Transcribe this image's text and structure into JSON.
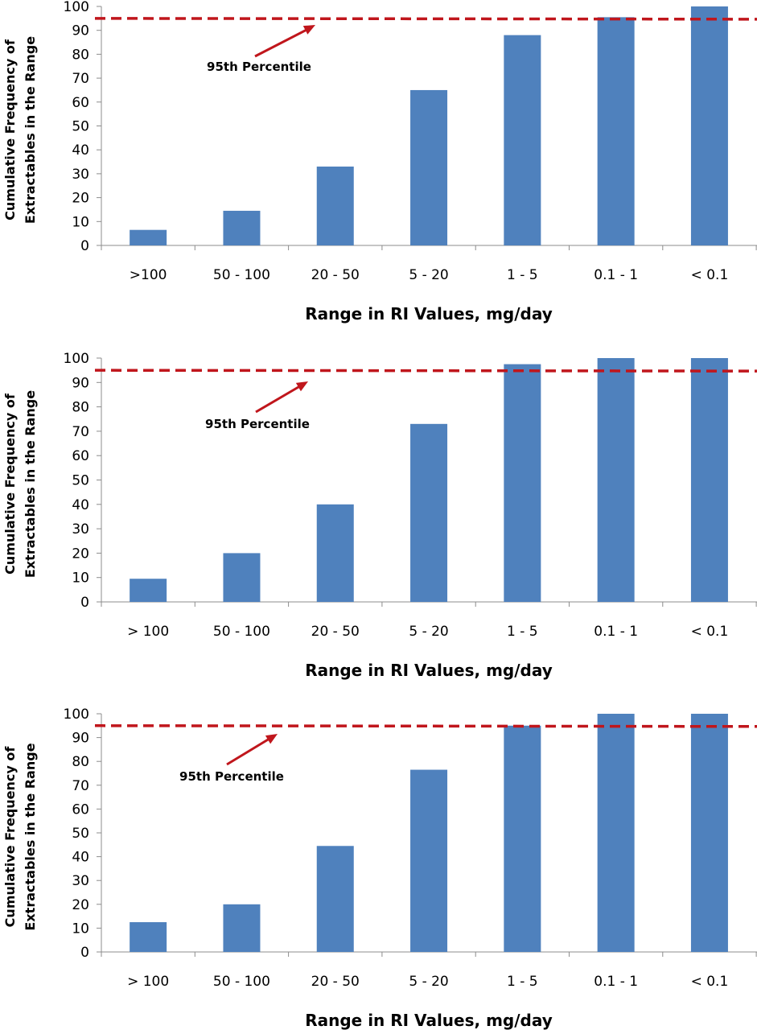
{
  "colors": {
    "bar": "#4f81bd",
    "reference_line": "#c0161c",
    "axis": "#8c8c8c"
  },
  "chart_data": [
    {
      "type": "bar",
      "title": "",
      "xlabel": "Range in RI Values, mg/day",
      "ylabel_lines": [
        "Cumulative Frequency of",
        "Extractables in the Range"
      ],
      "categories": [
        ">100",
        "50 - 100",
        "20 - 50",
        "5 - 20",
        "1 - 5",
        "0.1 - 1",
        "< 0.1"
      ],
      "values": [
        6.5,
        14.5,
        33,
        65,
        88,
        95.5,
        100
      ],
      "ylim": [
        0,
        100
      ],
      "yticks": [
        0,
        10,
        20,
        30,
        40,
        50,
        60,
        70,
        80,
        90,
        100
      ],
      "grid": false,
      "reference_line": {
        "value": 95,
        "style": "dashed"
      },
      "annotation": {
        "text": "95th Percentile",
        "arrow_points_to": 95
      }
    },
    {
      "type": "bar",
      "title": "",
      "xlabel": "Range in RI Values, mg/day",
      "ylabel_lines": [
        "Cumulative Frequency of",
        "Extractables in the Range"
      ],
      "categories": [
        "> 100",
        "50 - 100",
        "20 - 50",
        "5 - 20",
        "1 - 5",
        "0.1 - 1",
        "< 0.1"
      ],
      "values": [
        9.5,
        20,
        40,
        73,
        97.5,
        100,
        100
      ],
      "ylim": [
        0,
        100
      ],
      "yticks": [
        0,
        10,
        20,
        30,
        40,
        50,
        60,
        70,
        80,
        90,
        100
      ],
      "grid": false,
      "reference_line": {
        "value": 95,
        "style": "dashed"
      },
      "annotation": {
        "text": "95th Percentile",
        "arrow_points_to": 95
      }
    },
    {
      "type": "bar",
      "title": "",
      "xlabel": "Range in RI Values, mg/day",
      "ylabel_lines": [
        "Cumulative Frequency of",
        "Extractables in the Range"
      ],
      "categories": [
        "> 100",
        "50 - 100",
        "20 - 50",
        "5 - 20",
        "1 - 5",
        "0.1 - 1",
        "< 0.1"
      ],
      "values": [
        12.5,
        20,
        44.5,
        76.5,
        95,
        100,
        100
      ],
      "ylim": [
        0,
        100
      ],
      "yticks": [
        0,
        10,
        20,
        30,
        40,
        50,
        60,
        70,
        80,
        90,
        100
      ],
      "grid": false,
      "reference_line": {
        "value": 95,
        "style": "dashed"
      },
      "annotation": {
        "text": "95th Percentile",
        "arrow_points_to": 95
      }
    }
  ]
}
